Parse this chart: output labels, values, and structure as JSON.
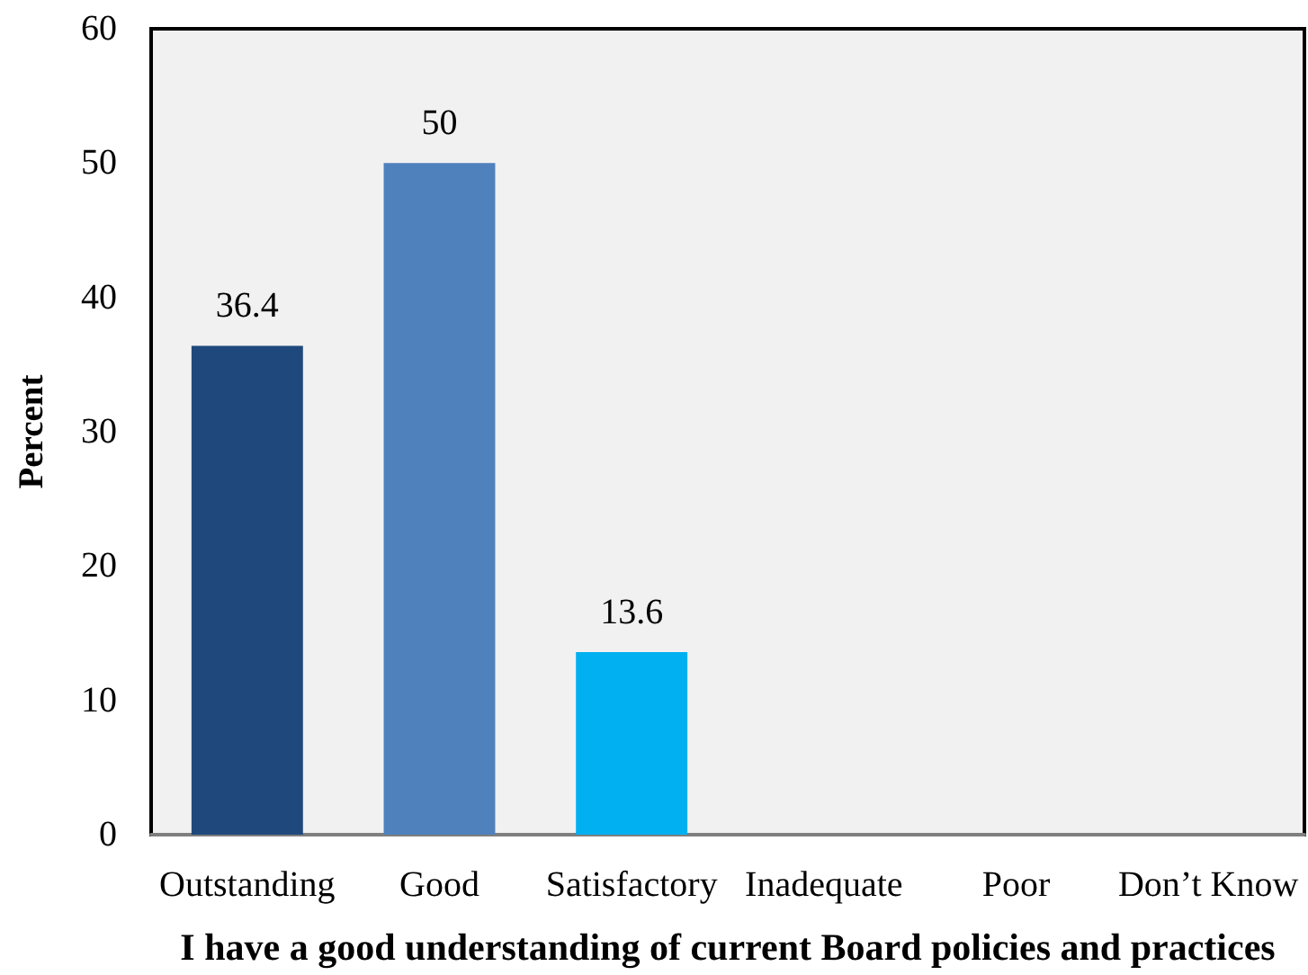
{
  "chart_data": {
    "type": "bar",
    "xlabel": "I have a good understanding of current Board policies and practices",
    "ylabel": "Percent",
    "categories": [
      "Outstanding",
      "Good",
      "Satisfactory",
      "Inadequate",
      "Poor",
      "Don’t Know"
    ],
    "values": [
      36.4,
      50,
      13.6,
      null,
      null,
      null
    ],
    "colors": [
      "#1f497d",
      "#4f81bd",
      "#00b0f0",
      "#4f81bd",
      "#4f81bd",
      "#4f81bd"
    ],
    "ylim": [
      0,
      60
    ],
    "yticks": [
      0,
      10,
      20,
      30,
      40,
      50,
      60
    ],
    "grid": false,
    "data_labels": true
  }
}
